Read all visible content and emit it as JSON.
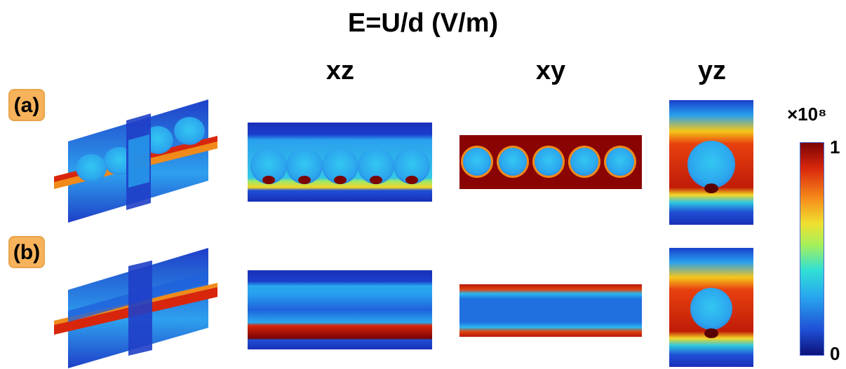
{
  "title": "E=U/d (V/m)",
  "columns": [
    "xz",
    "xy",
    "yz"
  ],
  "rows": [
    "(a)",
    "(b)"
  ],
  "colorbar": {
    "multiplier": "×10⁸",
    "max_label": "1",
    "min_label": "0",
    "colors": [
      "#0d1177",
      "#1f4fd6",
      "#29a9ef",
      "#30e0d5",
      "#a7f05a",
      "#f0e030",
      "#f68a1a",
      "#d8260c",
      "#7a0303"
    ]
  }
}
